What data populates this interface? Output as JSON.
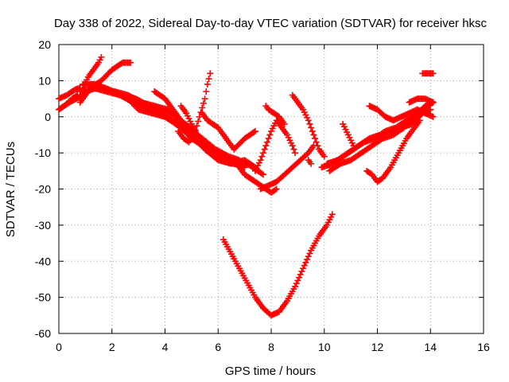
{
  "chart_data": {
    "type": "scatter",
    "title": "Day 338 of 2022, Sidereal Day-to-day VTEC variation (SDTVAR) for receiver hksc",
    "xlabel": "GPS time / hours",
    "ylabel": "SDTVAR / TECUs",
    "xlim": [
      0,
      16
    ],
    "ylim": [
      -60,
      20
    ],
    "xticks": [
      0,
      2,
      4,
      6,
      8,
      10,
      12,
      14,
      16
    ],
    "yticks": [
      -60,
      -50,
      -40,
      -30,
      -20,
      -10,
      0,
      10,
      20
    ],
    "grid": true,
    "marker": "+",
    "color": "#ff0000",
    "series": [
      {
        "x": [
          0.0,
          0.3,
          0.6,
          0.8
        ],
        "y": [
          5,
          6,
          7.5,
          8
        ]
      },
      {
        "x": [
          0.0,
          0.2,
          0.5,
          0.7
        ],
        "y": [
          2,
          3,
          5,
          6
        ]
      },
      {
        "x": [
          0.9,
          1.1,
          1.3,
          1.5,
          1.6
        ],
        "y": [
          8,
          11,
          13,
          15,
          16.5
        ]
      },
      {
        "x": [
          0.8,
          1.2,
          1.6,
          2.0,
          2.4,
          2.7
        ],
        "y": [
          4,
          8,
          10,
          13,
          15,
          15
        ]
      },
      {
        "x": [
          0.8,
          1.5,
          2.0,
          2.6,
          3.0,
          3.5,
          4.0,
          4.5,
          5.0,
          5.5,
          6.0,
          6.5,
          7.0,
          7.4
        ],
        "y": [
          7,
          8,
          7,
          5,
          2,
          1,
          0,
          -2,
          -5,
          -9,
          -12,
          -13,
          -12,
          -14
        ]
      },
      {
        "x": [
          0.0,
          0.4,
          0.9,
          1.3,
          1.8,
          2.3,
          2.8,
          3.3,
          3.8,
          4.2,
          4.6,
          5.0,
          5.4,
          5.8,
          6.2,
          6.6,
          7.0
        ],
        "y": [
          2,
          4,
          6,
          8,
          7,
          6,
          4,
          2,
          1,
          -1,
          -3,
          -6,
          -8,
          -10,
          -12,
          -13,
          -14
        ]
      },
      {
        "x": [
          0.9,
          1.4,
          1.9,
          2.4,
          2.9,
          3.4,
          3.9,
          4.4,
          4.9,
          5.4,
          5.9,
          6.4,
          6.8
        ],
        "y": [
          9,
          9,
          7.5,
          6,
          5,
          3,
          2,
          0,
          -3,
          -6,
          -9,
          -11,
          -12
        ]
      },
      {
        "x": [
          3.6,
          3.8,
          4.0,
          4.2,
          4.4,
          4.6,
          4.8
        ],
        "y": [
          7,
          6,
          5,
          3,
          1,
          -1,
          -4
        ]
      },
      {
        "x": [
          2.1,
          2.6,
          3.1,
          3.6,
          4.1,
          4.6,
          5.1,
          5.6,
          6.1,
          6.6,
          7.1,
          7.5,
          7.7
        ],
        "y": [
          7,
          6,
          4,
          3,
          2,
          -1,
          -4,
          -8,
          -11,
          -13,
          -13,
          -15,
          -16
        ]
      },
      {
        "x": [
          4.5,
          4.7,
          4.9,
          5.1,
          5.3,
          5.5,
          5.6,
          5.7
        ],
        "y": [
          -4,
          -6,
          -7,
          -5,
          0,
          5,
          9,
          12
        ]
      },
      {
        "x": [
          4.6,
          4.8,
          5.0,
          5.2
        ],
        "y": [
          3,
          1,
          -2,
          -5
        ]
      },
      {
        "x": [
          5.4,
          5.6,
          5.8,
          6.0,
          6.2,
          6.4,
          6.6,
          7.0,
          7.4
        ],
        "y": [
          1,
          -1,
          -2,
          -3,
          -5,
          -7,
          -9,
          -6,
          -4
        ]
      },
      {
        "x": [
          6.2,
          6.5,
          6.8,
          7.1,
          7.4,
          7.7,
          8.0,
          8.3,
          8.6,
          8.9,
          9.2,
          9.5,
          9.8,
          10.1,
          10.3
        ],
        "y": [
          -34,
          -38,
          -42,
          -46,
          -50,
          -53,
          -55,
          -54,
          -51,
          -47,
          -42,
          -37,
          -33,
          -30,
          -27
        ]
      },
      {
        "x": [
          6.6,
          6.8,
          7.0,
          7.2,
          7.4,
          7.6,
          7.8,
          8.0,
          8.2
        ],
        "y": [
          -12,
          -14,
          -16,
          -17,
          -18,
          -19,
          -20,
          -21,
          -20
        ]
      },
      {
        "x": [
          7.6,
          7.9,
          8.2,
          8.5,
          8.8,
          9.1,
          9.4,
          9.6
        ],
        "y": [
          -20,
          -19,
          -18,
          -16,
          -14,
          -12,
          -10,
          -8
        ]
      },
      {
        "x": [
          7.8,
          7.9,
          8.1,
          8.3,
          8.5
        ],
        "y": [
          3,
          2,
          1,
          0,
          -2
        ]
      },
      {
        "x": [
          7.4,
          7.6,
          7.8,
          8.0,
          8.2,
          8.4,
          8.6,
          8.8,
          8.9
        ],
        "y": [
          -15,
          -12,
          -8,
          -4,
          -1,
          -3,
          -5,
          -8,
          -10
        ]
      },
      {
        "x": [
          8.8,
          9.0,
          9.2,
          9.4,
          9.6,
          9.8,
          10.0
        ],
        "y": [
          6,
          4,
          2,
          -1,
          -5,
          -9,
          -11
        ]
      },
      {
        "x": [
          9.4,
          9.5
        ],
        "y": [
          -12,
          -13
        ]
      },
      {
        "x": [
          9.9,
          10.3,
          10.7,
          11.1,
          11.5,
          11.9,
          12.3,
          12.7,
          13.1,
          13.5,
          13.9,
          14.1
        ],
        "y": [
          -14,
          -13,
          -11,
          -9,
          -7,
          -6,
          -4,
          -3,
          -1,
          1,
          3,
          4
        ]
      },
      {
        "x": [
          10.1,
          10.5,
          10.9,
          11.3,
          11.7,
          12.1,
          12.5,
          12.9,
          13.3,
          13.7,
          14.0
        ],
        "y": [
          -13,
          -12,
          -10,
          -8,
          -6,
          -5,
          -4,
          -3,
          -2,
          1,
          2
        ]
      },
      {
        "x": [
          10.2,
          10.6,
          11.0,
          11.4,
          11.8,
          12.2,
          12.6,
          13.0,
          13.4,
          13.8,
          14.1
        ],
        "y": [
          -15,
          -13,
          -12,
          -10,
          -8,
          -6,
          -5,
          -3,
          0,
          3,
          4
        ]
      },
      {
        "x": [
          10.7,
          10.9,
          11.1
        ],
        "y": [
          -2,
          -5,
          -8
        ]
      },
      {
        "x": [
          11.6,
          11.8,
          12.0,
          12.2,
          12.5,
          12.8,
          13.1,
          13.4,
          13.6
        ],
        "y": [
          -15,
          -16,
          -18,
          -17,
          -14,
          -10,
          -6,
          -3,
          -1
        ]
      },
      {
        "x": [
          11.7,
          12.0,
          12.3,
          12.6,
          12.9,
          13.2,
          13.5,
          13.8,
          14.1
        ],
        "y": [
          3,
          2,
          0,
          -1,
          0,
          1,
          2,
          1,
          0
        ]
      },
      {
        "x": [
          13.7,
          13.8,
          13.9,
          14.0,
          14.1
        ],
        "y": [
          12,
          12,
          12,
          12,
          12
        ]
      },
      {
        "x": [
          13.2,
          13.5,
          13.8,
          14.1
        ],
        "y": [
          4,
          5,
          5,
          4
        ]
      }
    ]
  }
}
